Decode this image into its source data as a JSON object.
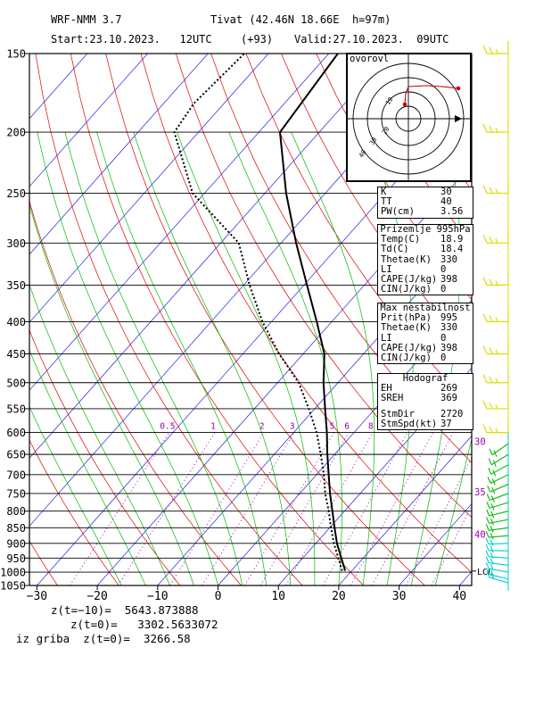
{
  "header": {
    "model": "WRF-NMM 3.7",
    "station": "Tivat (42.46N 18.66E  h=97m)",
    "start": "Start:23.10.2023.   12UTC",
    "lead": "(+93)",
    "valid": "Valid:27.10.2023.  09UTC"
  },
  "chart_data": {
    "type": "line",
    "x_ticks": [
      "−30",
      "−20",
      "−10",
      "0",
      "10",
      "20",
      "30",
      "40"
    ],
    "x_values": [
      -30,
      -20,
      -10,
      0,
      10,
      20,
      30,
      40
    ],
    "xlim": [
      -32,
      42
    ],
    "pressure_ticks": [
      150,
      200,
      250,
      300,
      350,
      400,
      450,
      500,
      550,
      600,
      650,
      700,
      750,
      800,
      850,
      900,
      950,
      1000,
      1050
    ],
    "ylim": [
      150,
      1050
    ],
    "mixing_ratio_labels": [
      {
        "text": "0.5",
        "value": 0.5
      },
      {
        "text": "1",
        "value": 1
      },
      {
        "text": "2",
        "value": 2
      },
      {
        "text": "3",
        "value": 3
      },
      {
        "text": "5",
        "value": 5
      },
      {
        "text": "6",
        "value": 6
      },
      {
        "text": "8",
        "value": 8
      }
    ],
    "right_labels": [
      {
        "text": "30",
        "p": 620
      },
      {
        "text": "35",
        "p": 745
      },
      {
        "text": "40",
        "p": 870
      },
      {
        "text": "LCL",
        "p": 996
      }
    ],
    "series": [
      {
        "values": [
          [
            995,
            18.9
          ],
          [
            950,
            16.4
          ],
          [
            900,
            13.5
          ],
          [
            850,
            10.8
          ],
          [
            800,
            8.0
          ],
          [
            750,
            5.0
          ],
          [
            700,
            2.0
          ],
          [
            650,
            -1.2
          ],
          [
            600,
            -4.5
          ],
          [
            550,
            -8.3
          ],
          [
            500,
            -12.4
          ],
          [
            450,
            -16.5
          ],
          [
            400,
            -22.5
          ],
          [
            350,
            -29.5
          ],
          [
            300,
            -37.5
          ],
          [
            250,
            -46.5
          ],
          [
            200,
            -56.5
          ],
          [
            150,
            -58.5
          ]
        ]
      },
      {
        "values": [
          [
            995,
            18.4
          ],
          [
            950,
            15.9
          ],
          [
            900,
            13.0
          ],
          [
            850,
            10.2
          ],
          [
            800,
            7.4
          ],
          [
            750,
            4.2
          ],
          [
            700,
            1.2
          ],
          [
            650,
            -2.3
          ],
          [
            600,
            -6.2
          ],
          [
            550,
            -11.0
          ],
          [
            500,
            -16.5
          ],
          [
            450,
            -24.0
          ],
          [
            400,
            -31.5
          ],
          [
            350,
            -39.0
          ],
          [
            300,
            -47.0
          ],
          [
            250,
            -62.0
          ],
          [
            200,
            -74.0
          ],
          [
            180,
            -75.0
          ],
          [
            150,
            -74.0
          ]
        ]
      }
    ]
  },
  "indices": {
    "K": "30",
    "TT": "40",
    "PW": "3.56"
  },
  "box1": {
    "rows": [
      {
        "k": "K",
        "v": "30"
      },
      {
        "k": "TT",
        "v": "40"
      },
      {
        "k": "PW(cm)",
        "v": "3.56"
      }
    ]
  },
  "box2": {
    "title": "Prizemlje 995hPa",
    "rows": [
      {
        "k": "Temp(C)",
        "v": "18.9"
      },
      {
        "k": "Td(C)",
        "v": "18.4"
      },
      {
        "k": "Thetae(K)",
        "v": "330"
      },
      {
        "k": "LI",
        "v": "0"
      },
      {
        "k": "CAPE(J/kg)",
        "v": "398"
      },
      {
        "k": "CIN(J/kg)",
        "v": "0"
      }
    ]
  },
  "box3": {
    "title": "Max nestabilnost",
    "rows": [
      {
        "k": "Prit(hPa)",
        "v": "995"
      },
      {
        "k": "Thetae(K)",
        "v": "330"
      },
      {
        "k": "LI",
        "v": "0"
      },
      {
        "k": "CAPE(J/kg)",
        "v": "398"
      },
      {
        "k": "CIN(J/kg)",
        "v": "0"
      }
    ]
  },
  "box4": {
    "title": "Hodograf",
    "rows": [
      {
        "k": "EH",
        "v": "269"
      },
      {
        "k": "SREH",
        "v": "369"
      },
      {
        "k": "StmDir",
        "v": "2720"
      },
      {
        "k": "StmSpd(kt)",
        "v": "37"
      }
    ]
  },
  "hodograph": {
    "title": "ovorovl",
    "ring_labels": [
      "10",
      "20",
      "30",
      "40"
    ]
  },
  "bottom": {
    "line1": "z(t=−10)=  5643.873888",
    "line2": "z(t=0)=   3302.5633072",
    "line3": "iz griba  z(t=0)=  3266.58"
  },
  "colors": {
    "isotherm": "#2222dd",
    "dry_adiabat": "#dd0000",
    "moist_adiabat": "#00bb00",
    "mixing_ratio": "#9900aa",
    "isobar": "#000000",
    "wind_barbs": "#dddd00",
    "wind_barbs_low": "#00cccc"
  }
}
